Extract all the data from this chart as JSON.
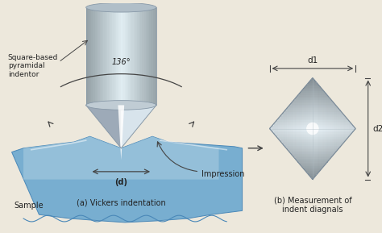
{
  "bg_color": "#ede8dc",
  "label_indentor": "Square-based\npyramidal\nindentor",
  "label_angle": "136°",
  "label_d": "(d)",
  "label_impression": "Impression",
  "label_sample": "Sample",
  "label_a": "(a) Vickers indentation",
  "label_b": "(b) Measurement of\nindent diagnals",
  "label_d1": "d1",
  "label_d2": "d2",
  "arrow_color": "#444444",
  "text_color": "#222222"
}
